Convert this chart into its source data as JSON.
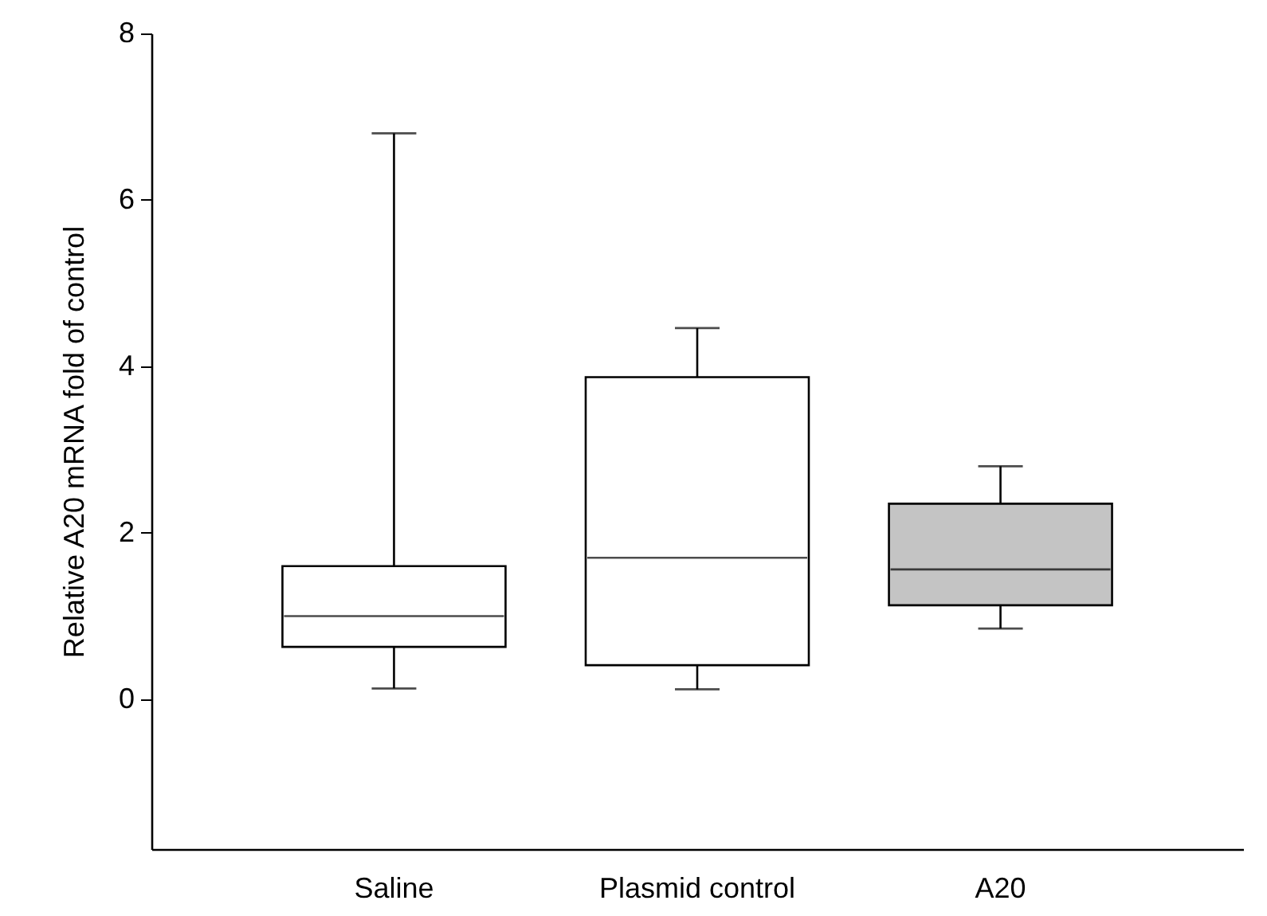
{
  "chart_data": {
    "type": "box",
    "ylabel": "Relative A20 mRNA fold of control",
    "categories": [
      "Saline",
      "Plasmid control",
      "A20"
    ],
    "boxes": [
      {
        "low": 0.13,
        "q1": 0.63,
        "median": 1.0,
        "q3": 1.6,
        "high": 6.8
      },
      {
        "low": 0.12,
        "q1": 0.41,
        "median": 1.7,
        "q3": 3.87,
        "high": 4.46
      },
      {
        "low": 0.85,
        "q1": 1.13,
        "median": 1.56,
        "q3": 2.35,
        "high": 2.8
      }
    ],
    "colors": [
      "#ffffff",
      "#ffffff",
      "#c4c4c4"
    ],
    "ylim": [
      -1.8,
      8
    ],
    "yticks": [
      0,
      2,
      4,
      6,
      8
    ],
    "grid": false
  }
}
